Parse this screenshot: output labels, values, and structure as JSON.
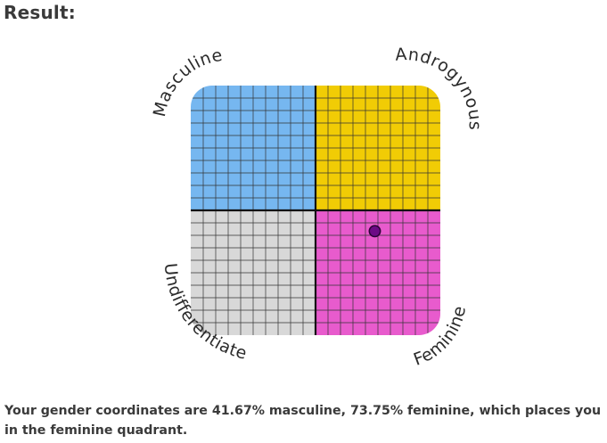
{
  "header": {
    "title": "Result:"
  },
  "chart": {
    "labels": {
      "top_left": "Masculine",
      "top_right": "Androgynous",
      "bottom_left": "Undifferentiated",
      "bottom_right": "Feminine"
    },
    "grid_divisions": 20,
    "point": {
      "masculine": 41.67,
      "feminine": 73.75
    },
    "colors": {
      "top_left": "#76b7f0",
      "top_right": "#f1cc05",
      "bottom_left": "#d8d8d8",
      "bottom_right": "#e85bcd",
      "point": "#6c0b85",
      "grid": "#333333"
    }
  },
  "result": {
    "text": "Your gender coordinates are 41.67% masculine, 73.75% feminine, which places you in the feminine quadrant."
  }
}
